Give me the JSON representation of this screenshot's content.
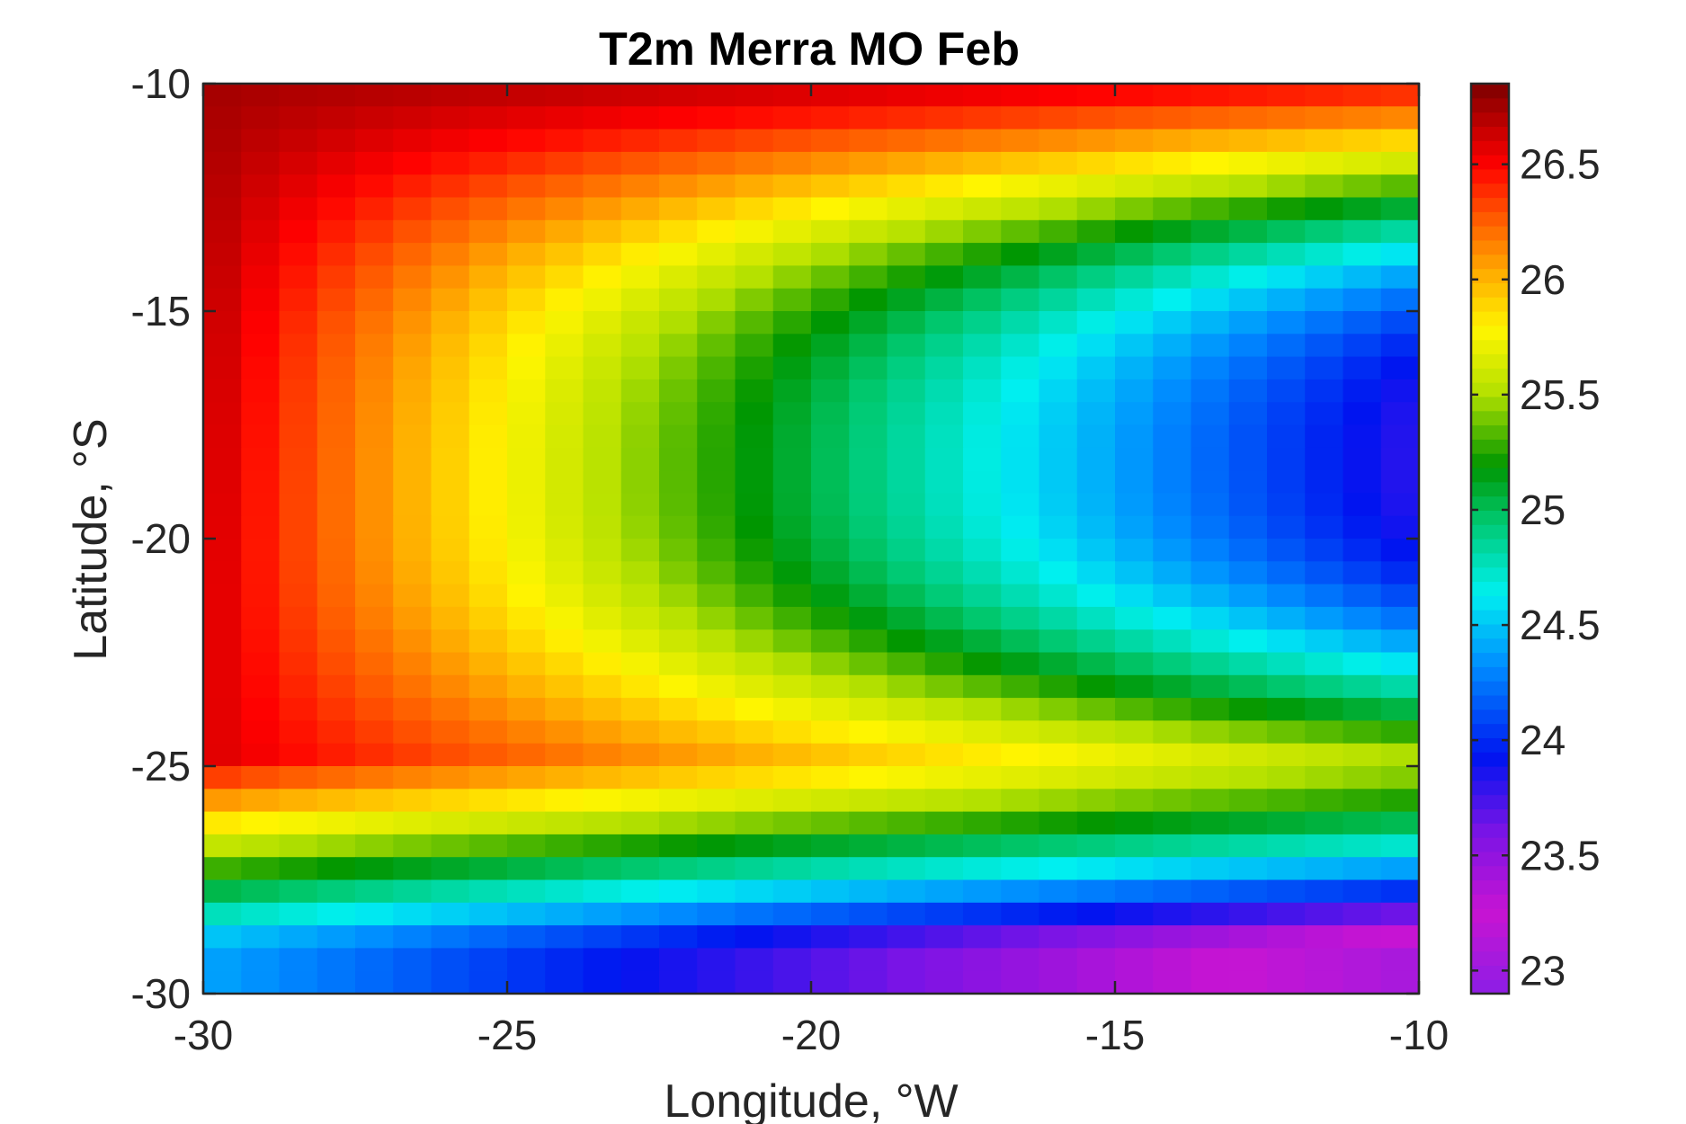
{
  "chart_data": {
    "type": "heatmap",
    "title": "T2m Merra MO Feb",
    "xlabel": "Longitude, °W",
    "ylabel": "Latitude, °S",
    "xlim": [
      -30,
      -10
    ],
    "ylim": [
      -30,
      -10
    ],
    "x_ticks": [
      -30,
      -25,
      -20,
      -15,
      -10
    ],
    "x_tick_labels": [
      "-30",
      "-25",
      "-20",
      "-15",
      "-10"
    ],
    "y_ticks": [
      -10,
      -15,
      -20,
      -25,
      -30
    ],
    "y_tick_labels": [
      "-10",
      "-15",
      "-20",
      "-25",
      "-30"
    ],
    "colorbar": {
      "range": [
        22.9,
        26.85
      ],
      "ticks": [
        23,
        23.5,
        24,
        24.5,
        25,
        25.5,
        26,
        26.5
      ],
      "tick_labels": [
        "23",
        "23.5",
        "24",
        "24.5",
        "25",
        "25.5",
        "26",
        "26.5"
      ],
      "colormap": "jet-like (purple-blue-cyan-green-yellow-red-darkred)"
    },
    "grid": false,
    "grid_cols": 32,
    "grid_rows": 40,
    "field_description": "Warmest (~26.8) in the north-west corner, cooling toward the east and south; coolest (~23.0) in the south-east; a tongue of warm air extends east along the northern edge."
  }
}
